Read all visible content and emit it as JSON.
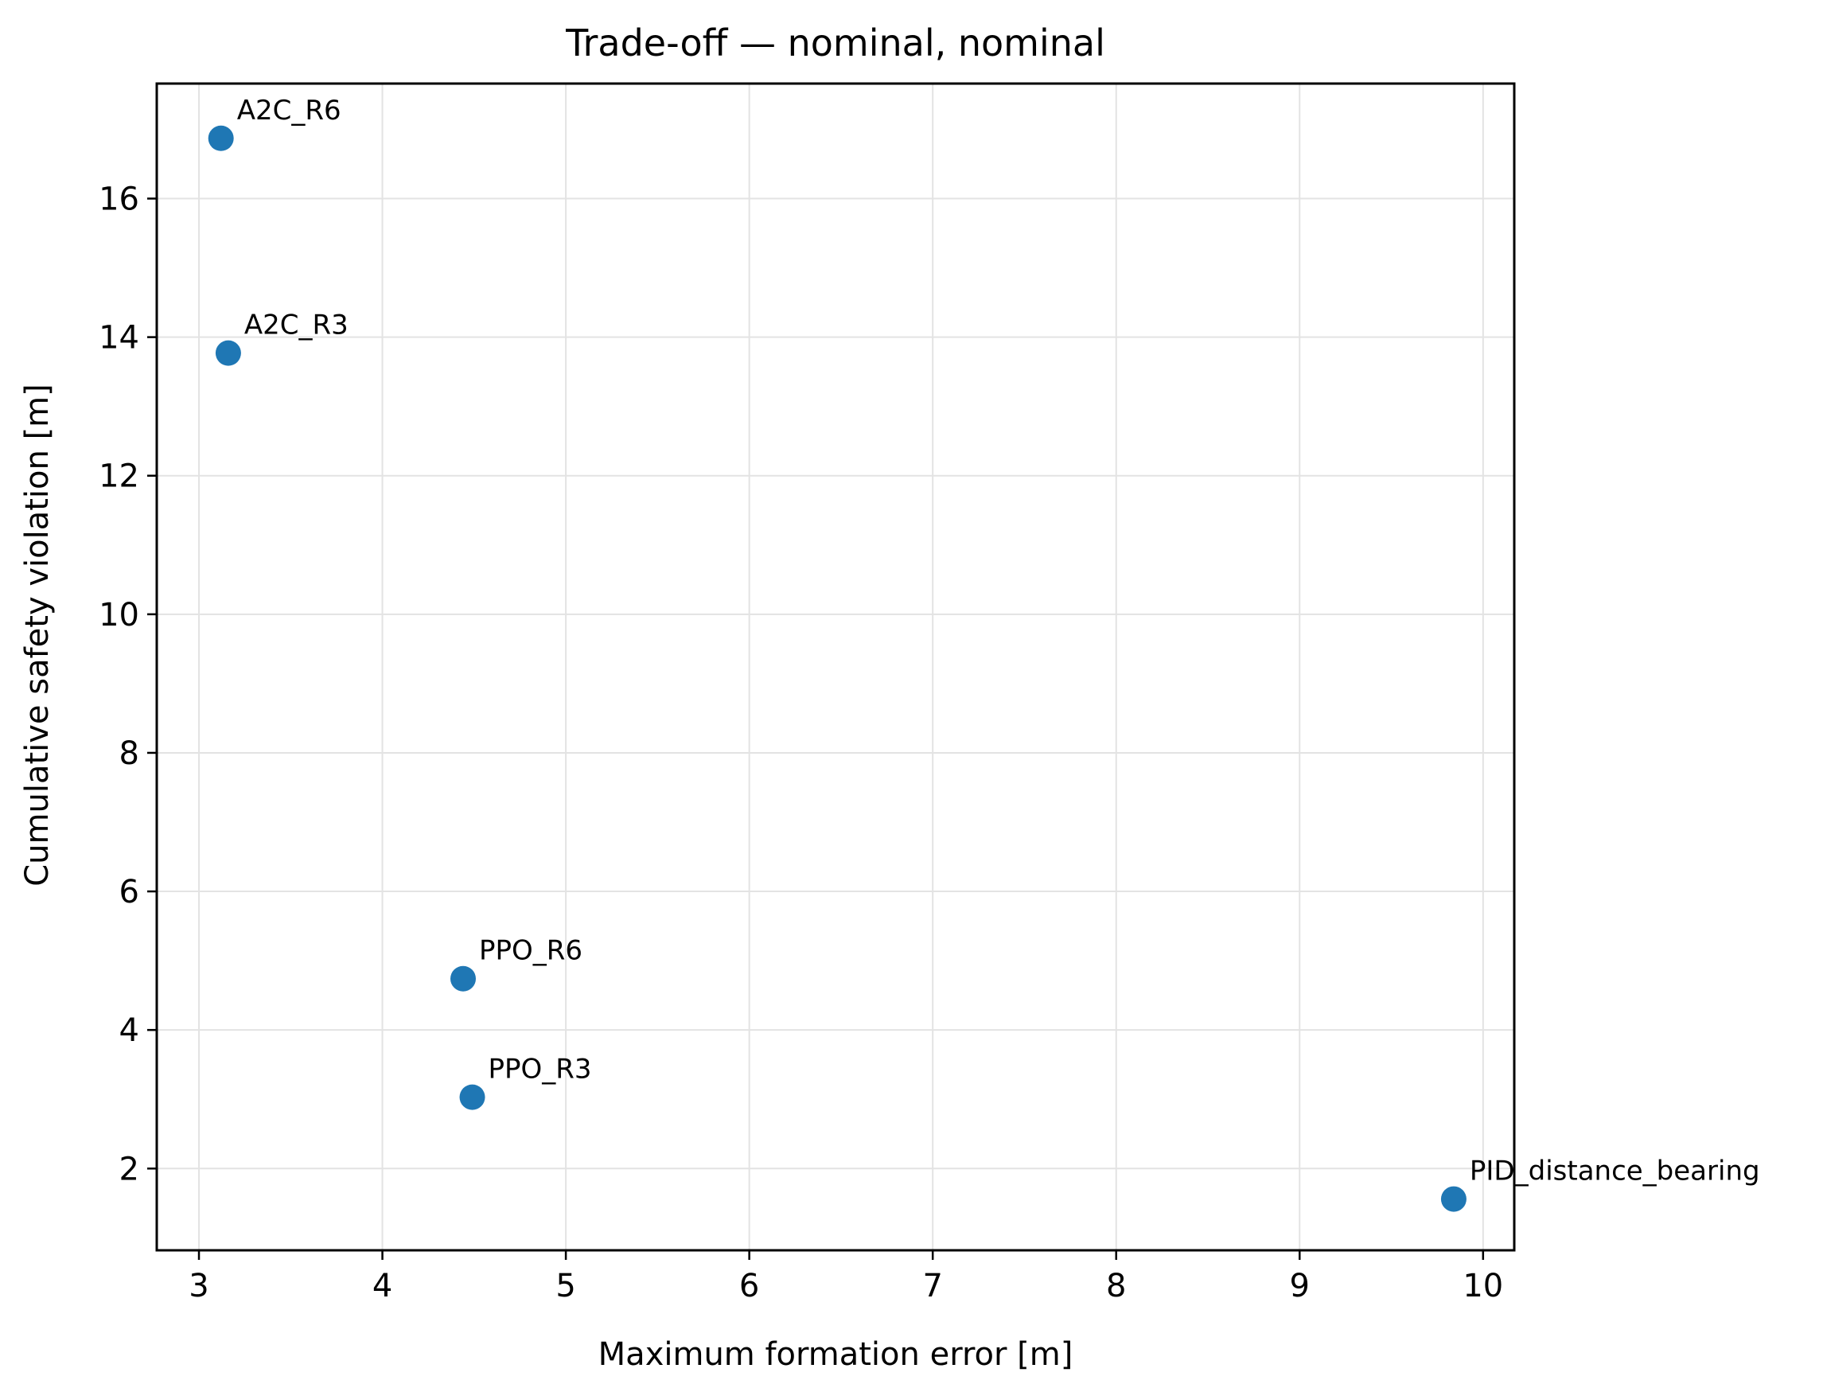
{
  "chart_data": {
    "type": "scatter",
    "title": "Trade-off — nominal, nominal",
    "xlabel": "Maximum formation error [m]",
    "ylabel": "Cumulative safety violation [m]",
    "xlim": [
      2.77,
      10.17
    ],
    "ylim": [
      0.82,
      17.66
    ],
    "xticks": [
      3,
      4,
      5,
      6,
      7,
      8,
      9,
      10
    ],
    "yticks": [
      2,
      4,
      6,
      8,
      10,
      12,
      14,
      16
    ],
    "grid": true,
    "color": "#1f77b4",
    "points": [
      {
        "label": "A2C_R6",
        "x": 3.12,
        "y": 16.87
      },
      {
        "label": "A2C_R3",
        "x": 3.16,
        "y": 13.77
      },
      {
        "label": "PPO_R6",
        "x": 4.44,
        "y": 4.74
      },
      {
        "label": "PPO_R3",
        "x": 4.49,
        "y": 3.03
      },
      {
        "label": "PID_distance_bearing",
        "x": 9.84,
        "y": 1.56
      }
    ]
  }
}
